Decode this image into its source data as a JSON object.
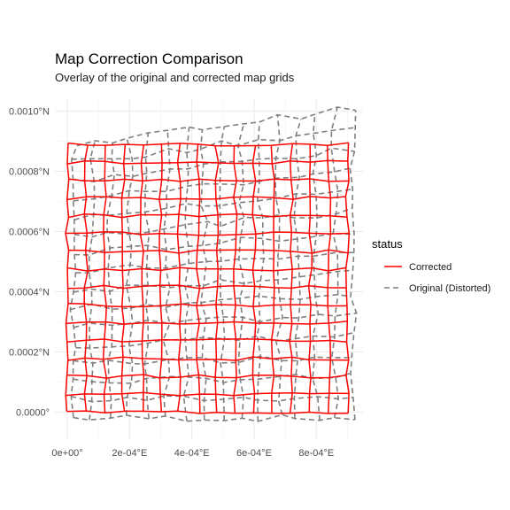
{
  "chart_data": {
    "type": "line",
    "title": "Map Correction Comparison",
    "subtitle": "Overlay of the original and corrected map grids",
    "xlim": [
      -4e-05,
      0.00095
    ],
    "ylim": [
      -9e-05,
      0.00104
    ],
    "x_ticks": [
      {
        "value": 0,
        "label": "0e+00°"
      },
      {
        "value": 0.0002,
        "label": "2e-04°E"
      },
      {
        "value": 0.0004,
        "label": "4e-04°E"
      },
      {
        "value": 0.0006,
        "label": "6e-04°E"
      },
      {
        "value": 0.0008,
        "label": "8e-04°E"
      }
    ],
    "y_ticks": [
      {
        "value": 0,
        "label": "0.0000°"
      },
      {
        "value": 0.0002,
        "label": "0.0002°N"
      },
      {
        "value": 0.0004,
        "label": "0.0004°N"
      },
      {
        "value": 0.0006,
        "label": "0.0006°N"
      },
      {
        "value": 0.0008,
        "label": "0.0008°N"
      },
      {
        "value": 0.001,
        "label": "0.0010°N"
      }
    ],
    "grid": true,
    "legend": {
      "title": "status",
      "position": "right",
      "entries": [
        {
          "label": "Corrected",
          "color": "#ff0000",
          "linetype": "solid"
        },
        {
          "label": "Original (Distorted)",
          "color": "#7f7f7f",
          "linetype": "dashed"
        }
      ]
    },
    "series": [
      {
        "name": "Corrected",
        "color": "#ff0000",
        "linetype": "solid",
        "grid": {
          "x_range": [
            0,
            0.0009
          ],
          "y_range": [
            0,
            0.00089
          ],
          "columns": 15,
          "rows": 15,
          "jitter": 6e-06
        }
      },
      {
        "name": "Original (Distorted)",
        "color": "#7f7f7f",
        "linetype": "dashed",
        "grid": {
          "x_range": [
            2e-05,
            0.00092
          ],
          "y_range": [
            -2e-05,
            0.00089
          ],
          "columns": 15,
          "rows": 15,
          "shear_top": 0.00012,
          "jitter": 1.2e-05
        }
      }
    ]
  }
}
